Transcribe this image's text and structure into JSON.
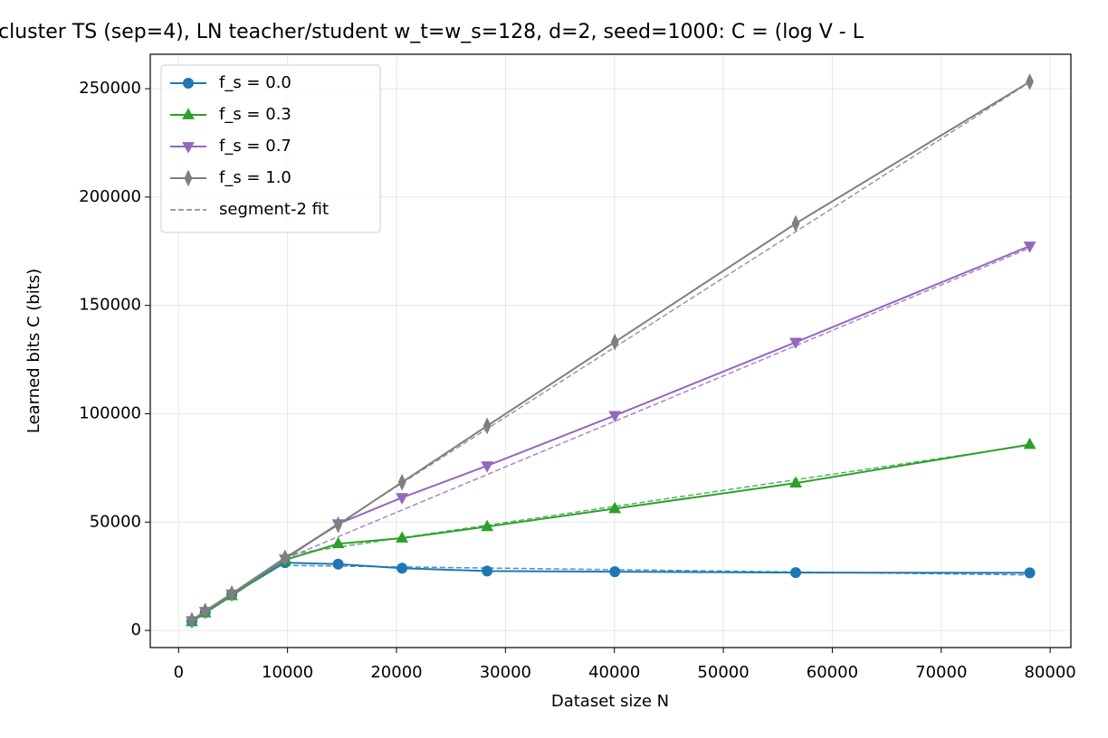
{
  "chart_data": {
    "type": "line",
    "title": "cluster TS (sep=4), LN teacher/student w_t=w_s=128, d=2, seed=1000: C = (log V - L",
    "x_label": "Dataset size N",
    "y_label": "Learned bits C (bits)",
    "x": [
      1221,
      2441,
      4883,
      9766,
      14648,
      20508,
      28320,
      40039,
      56641,
      78125
    ],
    "series": [
      {
        "name": "f_s = 0.0",
        "color": "#1f77b4",
        "marker": "circle",
        "values": [
          4200,
          8300,
          16500,
          31300,
          30600,
          28700,
          27400,
          27100,
          26700,
          26600
        ]
      },
      {
        "name": "f_s = 0.3",
        "color": "#2ca02c",
        "marker": "triangle-up",
        "values": [
          4000,
          8100,
          16000,
          32500,
          40000,
          42600,
          47900,
          56200,
          68000,
          85800
        ]
      },
      {
        "name": "f_s = 0.7",
        "color": "#9467bd",
        "marker": "triangle-down",
        "values": [
          4500,
          8800,
          16800,
          33000,
          49200,
          61300,
          76000,
          99200,
          133000,
          177400
        ]
      },
      {
        "name": "f_s = 1.0",
        "color": "#7f7f7f",
        "marker": "thin-diamond",
        "values": [
          4700,
          9000,
          17000,
          33500,
          48800,
          68400,
          94400,
          133100,
          187800,
          253200
        ]
      }
    ],
    "fits": {
      "label": "segment-2 fit",
      "color": "#7f7f7f",
      "lines": [
        {
          "color": "#1f77b4",
          "x": [
            9766,
            78125
          ],
          "values": [
            30000,
            25600
          ]
        },
        {
          "color": "#2ca02c",
          "x": [
            9766,
            78125
          ],
          "values": [
            34800,
            85500
          ]
        },
        {
          "color": "#9467bd",
          "x": [
            9766,
            78125
          ],
          "values": [
            33000,
            176500
          ]
        },
        {
          "color": "#7f7f7f",
          "x": [
            9766,
            78125
          ],
          "values": [
            33500,
            253000
          ]
        }
      ]
    },
    "xlim": [
      -2600,
      81900
    ],
    "ylim": [
      -7900,
      265900
    ],
    "xticks": [
      0,
      10000,
      20000,
      30000,
      40000,
      50000,
      60000,
      70000,
      80000
    ],
    "yticks": [
      0,
      50000,
      100000,
      150000,
      200000,
      250000
    ],
    "grid": true,
    "legend": "upper left"
  }
}
